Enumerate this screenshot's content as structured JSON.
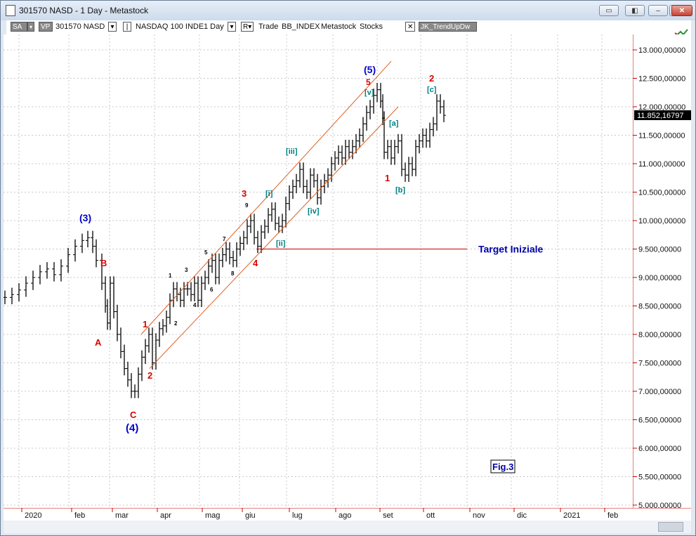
{
  "window": {
    "title": "301570 NASD - 1 Day - Metastock",
    "buttons": [
      "minimize",
      "maximize",
      "close"
    ]
  },
  "toolbar": {
    "sa_label": "SA",
    "vp_label": "VP",
    "symbol_label": "301570 NASD",
    "index_label": "NASDAQ 100 INDE",
    "period_label": "1 Day",
    "r_label": "R",
    "trade_label": "Trade",
    "bb_label": "BB_INDEX",
    "metastock_label": "Metastock",
    "stocks_label": "Stocks",
    "indicator_label": "JK_TrendUpDw"
  },
  "chart_data": {
    "type": "ohlc-bar",
    "ylim": [
      5000,
      13000
    ],
    "price_scale_labels": [
      "13.000,00000",
      "12.500,00000",
      "12.000,00000",
      "11.500,00000",
      "11.000,00000",
      "10.500,00000",
      "10.000,00000",
      "9.500,00000",
      "9.000,00000",
      "8.500,00000",
      "8.000,00000",
      "7.500,00000",
      "7.000,00000",
      "6.500,00000",
      "6.000,00000",
      "5.500,00000",
      "5.000,00000"
    ],
    "last_price_label": "11.852,16797",
    "month_labels": [
      "2020",
      "feb",
      "mar",
      "apr",
      "mag",
      "giu",
      "lug",
      "ago",
      "set",
      "ott",
      "nov",
      "dic",
      "2021",
      "feb"
    ],
    "target_label": "Target Iniziale",
    "target_level": 9500,
    "figure_label": "Fig.3",
    "wave_labels": [
      {
        "text": "(3)",
        "color": "#0000cc"
      },
      {
        "text": "B",
        "color": "#dd0000"
      },
      {
        "text": "A",
        "color": "#dd0000"
      },
      {
        "text": "C",
        "color": "#dd0000"
      },
      {
        "text": "(4)",
        "color": "#0000cc"
      },
      {
        "text": "1",
        "color": "#dd0000"
      },
      {
        "text": "2",
        "color": "#dd0000"
      },
      {
        "text": "1",
        "color": "#000000"
      },
      {
        "text": "2",
        "color": "#000000"
      },
      {
        "text": "3",
        "color": "#000000"
      },
      {
        "text": "4",
        "color": "#000000"
      },
      {
        "text": "5",
        "color": "#000000"
      },
      {
        "text": "6",
        "color": "#000000"
      },
      {
        "text": "7",
        "color": "#000000"
      },
      {
        "text": "8",
        "color": "#000000"
      },
      {
        "text": "9",
        "color": "#000000"
      },
      {
        "text": "3",
        "color": "#dd0000"
      },
      {
        "text": "4",
        "color": "#dd0000"
      },
      {
        "text": "[i]",
        "color": "#008080"
      },
      {
        "text": "[ii]",
        "color": "#008080"
      },
      {
        "text": "[iii]",
        "color": "#008080"
      },
      {
        "text": "[iv]",
        "color": "#008080"
      },
      {
        "text": "(5)",
        "color": "#0000cc"
      },
      {
        "text": "5",
        "color": "#dd0000"
      },
      {
        "text": "[v]",
        "color": "#008080"
      },
      {
        "text": "[a]",
        "color": "#008080"
      },
      {
        "text": "1",
        "color": "#dd0000"
      },
      {
        "text": "[b]",
        "color": "#008080"
      },
      {
        "text": "2",
        "color": "#dd0000"
      },
      {
        "text": "[c]",
        "color": "#008080"
      }
    ],
    "bar_path_points": [
      [
        0,
        8650
      ],
      [
        10,
        8700
      ],
      [
        20,
        8780
      ],
      [
        30,
        8900
      ],
      [
        40,
        9000
      ],
      [
        50,
        9100
      ],
      [
        60,
        9150
      ],
      [
        70,
        9050
      ],
      [
        80,
        9200
      ],
      [
        90,
        9400
      ],
      [
        100,
        9550
      ],
      [
        110,
        9650
      ],
      [
        118,
        9700
      ],
      [
        125,
        9550
      ],
      [
        130,
        9300
      ],
      [
        138,
        8900
      ],
      [
        143,
        8500
      ],
      [
        146,
        8200
      ],
      [
        150,
        8900
      ],
      [
        155,
        8400
      ],
      [
        160,
        8000
      ],
      [
        165,
        7700
      ],
      [
        170,
        7400
      ],
      [
        175,
        7200
      ],
      [
        180,
        7000
      ],
      [
        185,
        7000
      ],
      [
        190,
        7300
      ],
      [
        195,
        7600
      ],
      [
        200,
        7800
      ],
      [
        205,
        8000
      ],
      [
        210,
        7500
      ],
      [
        215,
        7900
      ],
      [
        220,
        8100
      ],
      [
        225,
        8150
      ],
      [
        230,
        8300
      ],
      [
        235,
        8600
      ],
      [
        240,
        8800
      ],
      [
        245,
        8700
      ],
      [
        250,
        8600
      ],
      [
        255,
        8800
      ],
      [
        260,
        8800
      ],
      [
        265,
        8700
      ],
      [
        270,
        8900
      ],
      [
        275,
        8600
      ],
      [
        280,
        8900
      ],
      [
        285,
        9000
      ],
      [
        290,
        9200
      ],
      [
        295,
        9300
      ],
      [
        300,
        9000
      ],
      [
        305,
        9300
      ],
      [
        310,
        9400
      ],
      [
        315,
        9500
      ],
      [
        320,
        9350
      ],
      [
        325,
        9300
      ],
      [
        330,
        9500
      ],
      [
        335,
        9600
      ],
      [
        340,
        9700
      ],
      [
        345,
        9900
      ],
      [
        350,
        10000
      ],
      [
        355,
        9700
      ],
      [
        360,
        9550
      ],
      [
        365,
        9800
      ],
      [
        370,
        9900
      ],
      [
        375,
        10100
      ],
      [
        380,
        10200
      ],
      [
        385,
        9950
      ],
      [
        390,
        9900
      ],
      [
        395,
        10000
      ],
      [
        400,
        10300
      ],
      [
        405,
        10500
      ],
      [
        410,
        10600
      ],
      [
        415,
        10700
      ],
      [
        420,
        10900
      ],
      [
        425,
        10600
      ],
      [
        430,
        10500
      ],
      [
        435,
        10800
      ],
      [
        440,
        10700
      ],
      [
        445,
        10400
      ],
      [
        450,
        10600
      ],
      [
        455,
        10700
      ],
      [
        460,
        10800
      ],
      [
        465,
        11000
      ],
      [
        470,
        11100
      ],
      [
        475,
        11200
      ],
      [
        480,
        11100
      ],
      [
        485,
        11300
      ],
      [
        490,
        11200
      ],
      [
        495,
        11300
      ],
      [
        500,
        11400
      ],
      [
        505,
        11500
      ],
      [
        510,
        11700
      ],
      [
        515,
        11900
      ],
      [
        520,
        12000
      ],
      [
        525,
        12200
      ],
      [
        530,
        12300
      ],
      [
        535,
        12100
      ],
      [
        538,
        11800
      ],
      [
        540,
        11200
      ],
      [
        545,
        11300
      ],
      [
        550,
        11100
      ],
      [
        555,
        11300
      ],
      [
        560,
        11400
      ],
      [
        565,
        10900
      ],
      [
        570,
        10800
      ],
      [
        575,
        11000
      ],
      [
        580,
        10900
      ],
      [
        585,
        11300
      ],
      [
        590,
        11400
      ],
      [
        595,
        11500
      ],
      [
        600,
        11400
      ],
      [
        605,
        11600
      ],
      [
        610,
        11700
      ],
      [
        615,
        12100
      ],
      [
        620,
        12000
      ],
      [
        625,
        11850
      ]
    ]
  }
}
